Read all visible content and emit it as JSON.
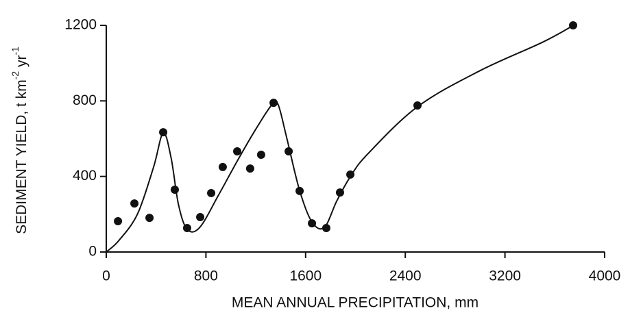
{
  "chart_data": {
    "type": "scatter",
    "xlabel": "MEAN ANNUAL PRECIPITATION, mm",
    "ylabel": [
      "SEDIMENT YIELD, t km",
      "-2",
      " yr",
      "-1"
    ],
    "xlim": [
      0,
      4000
    ],
    "ylim": [
      0,
      1200
    ],
    "xticks": [
      0,
      800,
      1600,
      2400,
      3200,
      4000
    ],
    "yticks": [
      0,
      400,
      800,
      1200
    ],
    "color": "#111111",
    "points": {
      "x": [
        94,
        226,
        347,
        457,
        550,
        649,
        754,
        842,
        935,
        1051,
        1155,
        1243,
        1343,
        1464,
        1552,
        1651,
        1766,
        1876,
        1959,
        2498,
        3747
      ],
      "y": [
        163,
        257,
        181,
        634,
        330,
        127,
        185,
        312,
        450,
        533,
        442,
        515,
        790,
        533,
        323,
        152,
        127,
        315,
        410,
        776,
        1200
      ]
    },
    "curve": {
      "x": [
        0,
        100,
        250,
        380,
        457,
        520,
        580,
        650,
        750,
        900,
        1050,
        1200,
        1330,
        1380,
        1450,
        1550,
        1650,
        1750,
        1850,
        1960,
        2100,
        2500,
        3000,
        3500,
        3750
      ],
      "y": [
        0,
        60,
        200,
        450,
        630,
        500,
        250,
        120,
        130,
        300,
        480,
        650,
        780,
        780,
        600,
        330,
        160,
        130,
        270,
        400,
        520,
        770,
        960,
        1110,
        1200
      ]
    }
  }
}
